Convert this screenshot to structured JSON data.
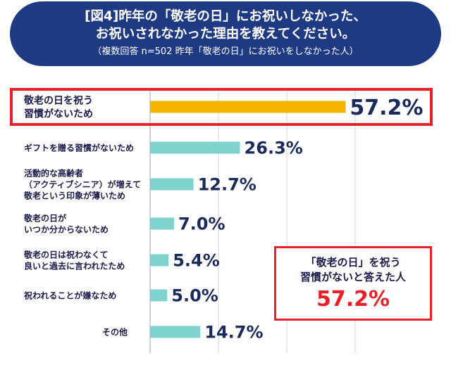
{
  "header": {
    "title_line1": "[図4]昨年の「敬老の日」にお祝いしなかった、",
    "title_line2": "お祝いされなかった理由を教えてください。",
    "subtitle": "（複数回答 n=502 昨年「敬老の日」にお祝いをしなかった人）"
  },
  "callout": {
    "line1": "「敬老の日」を祝う",
    "line2": "習慣がないと答えた人",
    "value": "57.2%"
  },
  "chart_data": {
    "type": "bar",
    "orientation": "horizontal",
    "categories": [
      [
        "敬老の日を祝う",
        "習慣がないため"
      ],
      [
        "ギフトを贈る習慣がないため"
      ],
      [
        "活動的な高齢者",
        "（アクティブシニア）が増えて",
        "敬老という印象が薄いため"
      ],
      [
        "敬老の日が",
        "いつか分からないため"
      ],
      [
        "敬老の日は祝わなくて",
        "良いと過去に言われたため"
      ],
      [
        "祝われることが嫌なため"
      ],
      [
        "その他"
      ]
    ],
    "values": [
      57.2,
      26.3,
      12.7,
      7.0,
      5.4,
      5.0,
      14.7
    ],
    "value_labels": [
      "57.2%",
      "26.3%",
      "12.7%",
      "7.0%",
      "5.4%",
      "5.0%",
      "14.7%"
    ],
    "xlim": [
      0,
      60
    ],
    "grid": true,
    "colors": {
      "highlight_bar": "#f4b400",
      "bar": "#7fd3cf",
      "value_text": "#1a2a5a",
      "frame": "#e8202a"
    }
  }
}
